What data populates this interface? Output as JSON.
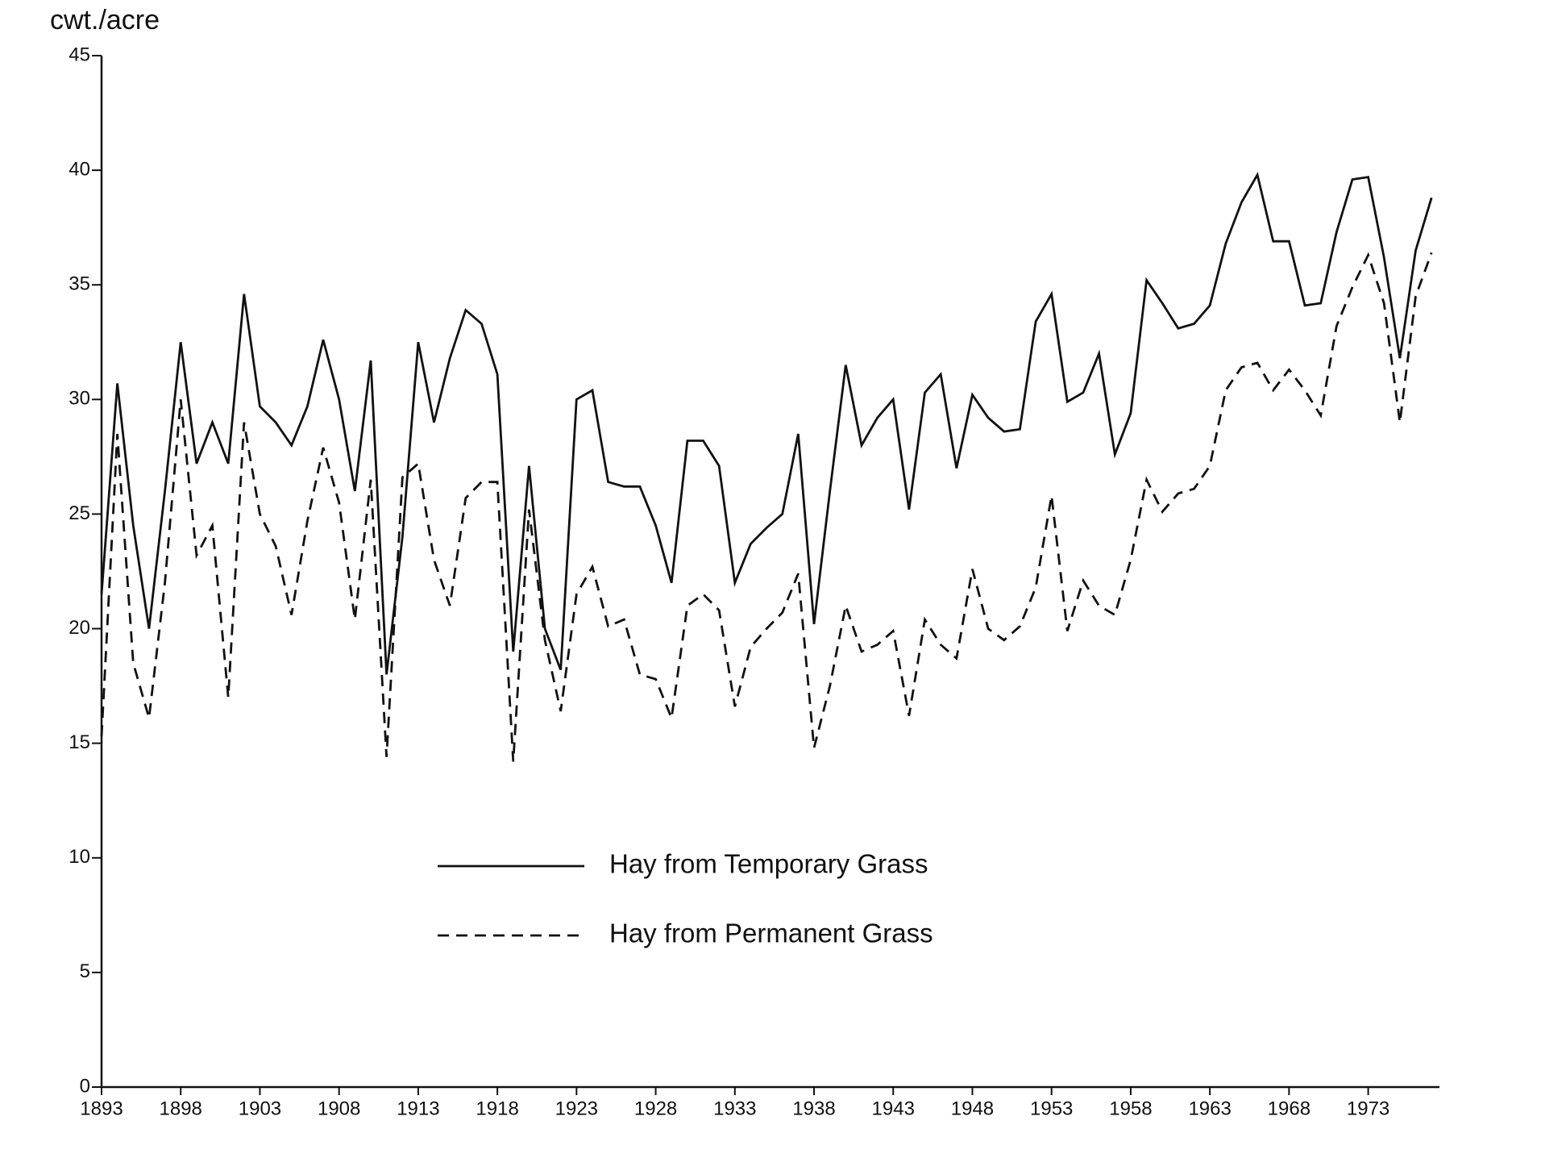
{
  "chart_data": {
    "type": "line",
    "ylabel": "cwt./acre",
    "x": [
      1893,
      1894,
      1895,
      1896,
      1897,
      1898,
      1899,
      1900,
      1901,
      1902,
      1903,
      1904,
      1905,
      1906,
      1907,
      1908,
      1909,
      1910,
      1911,
      1912,
      1913,
      1914,
      1915,
      1916,
      1917,
      1918,
      1919,
      1920,
      1921,
      1922,
      1923,
      1924,
      1925,
      1926,
      1927,
      1928,
      1929,
      1930,
      1931,
      1932,
      1933,
      1934,
      1935,
      1936,
      1937,
      1938,
      1939,
      1940,
      1941,
      1942,
      1943,
      1944,
      1945,
      1946,
      1947,
      1948,
      1949,
      1950,
      1951,
      1952,
      1953,
      1954,
      1955,
      1956,
      1957,
      1958,
      1959,
      1960,
      1961,
      1962,
      1963,
      1964,
      1965,
      1966,
      1967,
      1968,
      1969,
      1970,
      1971,
      1972,
      1973,
      1974,
      1975,
      1976,
      1977
    ],
    "series": [
      {
        "name": "Hay from Temporary Grass",
        "color": "#111111",
        "dash": false,
        "values": [
          21.5,
          30.7,
          24.5,
          20,
          26,
          32.5,
          27.2,
          29,
          27.2,
          34.6,
          29.7,
          29,
          28,
          29.7,
          32.6,
          30,
          26,
          31.7,
          18,
          24,
          32.5,
          29,
          31.8,
          33.9,
          33.3,
          31.1,
          19,
          27.1,
          20,
          18.2,
          30,
          30.4,
          26.4,
          26.2,
          26.2,
          24.5,
          22,
          28.2,
          28.2,
          27.1,
          22,
          23.7,
          24.4,
          25,
          28.5,
          20.2,
          26,
          31.5,
          28,
          29.2,
          30,
          25.2,
          30.3,
          31.1,
          27,
          30.2,
          29.2,
          28.6,
          28.7,
          33.4,
          34.6,
          29.9,
          30.3,
          32,
          27.6,
          29.4,
          35.2,
          34.2,
          33.1,
          33.3,
          34.1,
          36.8,
          38.6,
          39.8,
          36.9,
          36.9,
          34.1,
          34.2,
          37.3,
          39.6,
          39.7,
          36.2,
          31.8,
          36.5,
          38.8
        ]
      },
      {
        "name": "Hay from Permanent Grass",
        "color": "#111111",
        "dash": true,
        "values": [
          15.3,
          28.5,
          18.5,
          16.1,
          22,
          30,
          23.2,
          24.5,
          17,
          29,
          25,
          23.6,
          20.6,
          24.7,
          27.9,
          25.5,
          20.4,
          26.5,
          14.4,
          26.6,
          27.2,
          23,
          21,
          25.7,
          26.4,
          26.4,
          14.2,
          25.2,
          19.5,
          16.4,
          21.5,
          22.7,
          20.1,
          20.4,
          18,
          17.8,
          16.1,
          21,
          21.5,
          20.8,
          16.6,
          19.2,
          20,
          20.7,
          22.4,
          14.8,
          17.5,
          21,
          19,
          19.3,
          19.9,
          16.2,
          20.4,
          19.3,
          18.7,
          22.6,
          20,
          19.5,
          20.1,
          21.8,
          25.8,
          19.9,
          22.1,
          21,
          20.6,
          23,
          26.5,
          25.1,
          25.9,
          26.1,
          27.1,
          30.4,
          31.4,
          31.6,
          30.4,
          31.3,
          30.4,
          29.3,
          33.2,
          34.9,
          36.3,
          34.2,
          29,
          34.5,
          36.4
        ]
      }
    ],
    "xlim": [
      1893,
      1977.5
    ],
    "xticks": [
      1893,
      1898,
      1903,
      1908,
      1913,
      1918,
      1923,
      1928,
      1933,
      1938,
      1943,
      1948,
      1953,
      1958,
      1963,
      1968,
      1973
    ],
    "ylim": [
      0,
      45
    ],
    "yticks": [
      0,
      5,
      10,
      15,
      20,
      25,
      30,
      35,
      40,
      45
    ],
    "grid": false,
    "legend": "center"
  }
}
